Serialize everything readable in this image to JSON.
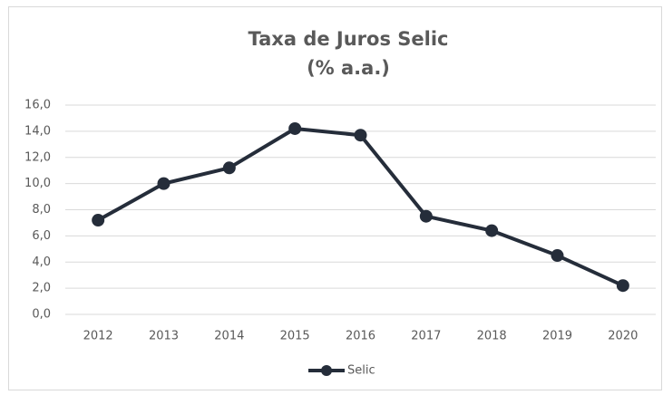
{
  "chart_data": {
    "type": "line",
    "title": "Taxa de Juros Selic",
    "subtitle": "(% a.a.)",
    "categories": [
      "2012",
      "2013",
      "2014",
      "2015",
      "2016",
      "2017",
      "2018",
      "2019",
      "2020"
    ],
    "series": [
      {
        "name": "Selic",
        "color": "#252d3a",
        "values": [
          7.2,
          10.0,
          11.2,
          14.2,
          13.7,
          7.5,
          6.4,
          4.5,
          2.2
        ]
      }
    ],
    "ylim": [
      0,
      16
    ],
    "yticks": [
      {
        "value": 0,
        "label": "0,0"
      },
      {
        "value": 2,
        "label": "2,0"
      },
      {
        "value": 4,
        "label": "4,0"
      },
      {
        "value": 6,
        "label": "6,0"
      },
      {
        "value": 8,
        "label": "8,0"
      },
      {
        "value": 10,
        "label": "10,0"
      },
      {
        "value": 12,
        "label": "12,0"
      },
      {
        "value": 14,
        "label": "14,0"
      },
      {
        "value": 16,
        "label": "16,0"
      }
    ],
    "grid": true,
    "legend": "bottom"
  }
}
